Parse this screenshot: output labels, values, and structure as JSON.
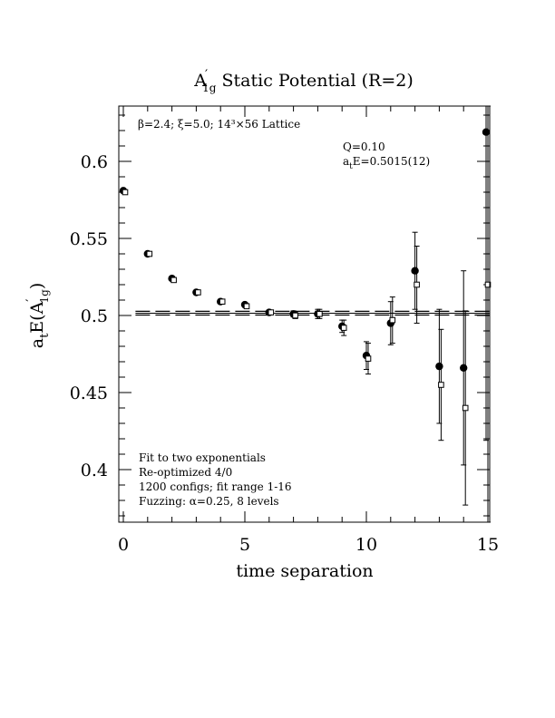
{
  "chart_data": {
    "type": "scatter",
    "title": {
      "main": "A",
      "prime": "′",
      "sub": "1g",
      "rest": " Static Potential (R=2)"
    },
    "xlabel": "time separation",
    "ylabel": {
      "a": "a",
      "t": "t",
      "e": "E(A",
      "prime": "′",
      "sub": "1g",
      "close": ")"
    },
    "xlim": [
      -0.2,
      15.1
    ],
    "ylim": [
      0.365,
      0.635
    ],
    "x_ticks": [
      0,
      5,
      10,
      15
    ],
    "x_tick_labels": [
      "0",
      "5",
      "10",
      "15"
    ],
    "y_ticks": [
      0.4,
      0.45,
      0.5,
      0.55,
      0.6
    ],
    "y_tick_labels": [
      "0.4",
      "0.45",
      "0.5",
      "0.55",
      "0.6"
    ],
    "annotations": {
      "lattice": "β=2.4; ξ=5.0; 14³×56 Lattice",
      "q": "Q=0.10",
      "fit_a": "a",
      "fit_t": "t",
      "fit_rest": "E=0.5015(12)",
      "lines": [
        "Fit to two exponentials",
        "Re-optimized 4/0",
        "1200 configs; fit range 1-16",
        "Fuzzing: α=0.25, 8 levels"
      ]
    },
    "fit": {
      "value": 0.5015,
      "error": 0.0012
    },
    "series": [
      {
        "marker": "filled-circle",
        "points": [
          {
            "x": 0,
            "y": 0.581,
            "err": 0.001
          },
          {
            "x": 1,
            "y": 0.54,
            "err": 0.001
          },
          {
            "x": 2,
            "y": 0.524,
            "err": 0.001
          },
          {
            "x": 3,
            "y": 0.515,
            "err": 0.001
          },
          {
            "x": 4,
            "y": 0.509,
            "err": 0.001
          },
          {
            "x": 5,
            "y": 0.507,
            "err": 0.001
          },
          {
            "x": 6,
            "y": 0.502,
            "err": 0.001
          },
          {
            "x": 7,
            "y": 0.501,
            "err": 0.002
          },
          {
            "x": 8,
            "y": 0.501,
            "err": 0.003
          },
          {
            "x": 9,
            "y": 0.493,
            "err": 0.004
          },
          {
            "x": 10,
            "y": 0.474,
            "err": 0.009
          },
          {
            "x": 11,
            "y": 0.495,
            "err": 0.014
          },
          {
            "x": 12,
            "y": 0.529,
            "err": 0.025
          },
          {
            "x": 13,
            "y": 0.467,
            "err": 0.037
          },
          {
            "x": 14,
            "y": 0.466,
            "err": 0.063
          },
          {
            "x": 15,
            "y": 0.619,
            "err": 0.2
          }
        ]
      },
      {
        "marker": "open-square",
        "points": [
          {
            "x": 0,
            "y": 0.58,
            "err": 0.001
          },
          {
            "x": 1,
            "y": 0.54,
            "err": 0.001
          },
          {
            "x": 2,
            "y": 0.523,
            "err": 0.001
          },
          {
            "x": 3,
            "y": 0.515,
            "err": 0.001
          },
          {
            "x": 4,
            "y": 0.509,
            "err": 0.001
          },
          {
            "x": 5,
            "y": 0.506,
            "err": 0.001
          },
          {
            "x": 6,
            "y": 0.502,
            "err": 0.001
          },
          {
            "x": 7,
            "y": 0.5,
            "err": 0.002
          },
          {
            "x": 8,
            "y": 0.501,
            "err": 0.003
          },
          {
            "x": 9,
            "y": 0.492,
            "err": 0.005
          },
          {
            "x": 10,
            "y": 0.472,
            "err": 0.01
          },
          {
            "x": 11,
            "y": 0.497,
            "err": 0.015
          },
          {
            "x": 12,
            "y": 0.52,
            "err": 0.025
          },
          {
            "x": 13,
            "y": 0.455,
            "err": 0.036
          },
          {
            "x": 14,
            "y": 0.44,
            "err": 0.063
          },
          {
            "x": 15,
            "y": 0.52,
            "err": 0.2
          }
        ]
      }
    ]
  }
}
